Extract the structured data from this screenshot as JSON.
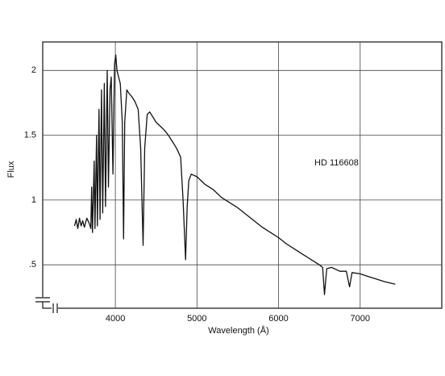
{
  "chart_data": {
    "type": "line",
    "annotation": "HD 116608",
    "x_label": "Wavelength (Å)",
    "y_label": "Flux",
    "xlim": [
      3110,
      8000
    ],
    "ylim": [
      0.165,
      2.22
    ],
    "xticks": [
      4000,
      5000,
      6000,
      7000
    ],
    "yticks": [
      {
        "value": 0.5,
        "label": ".5"
      },
      1,
      1.5,
      2
    ],
    "grid": true,
    "series": [
      {
        "color": "#111111",
        "x": [
          3500,
          3520,
          3540,
          3560,
          3580,
          3600,
          3620,
          3650,
          3680,
          3700,
          3710,
          3720,
          3740,
          3750,
          3770,
          3780,
          3800,
          3812,
          3830,
          3845,
          3865,
          3880,
          3900,
          3915,
          3935,
          3950,
          3970,
          3990,
          4005,
          4020,
          4040,
          4060,
          4085,
          4101,
          4115,
          4140,
          4170,
          4200,
          4240,
          4280,
          4310,
          4340,
          4360,
          4390,
          4420,
          4460,
          4500,
          4550,
          4600,
          4650,
          4700,
          4750,
          4800,
          4830,
          4861,
          4880,
          4900,
          4930,
          5000,
          5100,
          5200,
          5300,
          5400,
          5500,
          5600,
          5700,
          5800,
          5900,
          6000,
          6100,
          6200,
          6300,
          6400,
          6500,
          6540,
          6563,
          6590,
          6650,
          6750,
          6830,
          6870,
          6900,
          7000,
          7100,
          7200,
          7300,
          7430
        ],
        "values": [
          0.8,
          0.85,
          0.78,
          0.86,
          0.8,
          0.84,
          0.79,
          0.86,
          0.82,
          0.78,
          1.1,
          0.75,
          1.3,
          0.78,
          1.5,
          0.8,
          1.7,
          0.85,
          1.85,
          0.9,
          1.9,
          0.95,
          2.0,
          1.1,
          1.85,
          1.95,
          1.2,
          2.05,
          2.12,
          2.0,
          1.95,
          1.9,
          1.6,
          0.7,
          1.6,
          1.85,
          1.82,
          1.8,
          1.76,
          1.7,
          1.4,
          0.65,
          1.4,
          1.66,
          1.68,
          1.64,
          1.6,
          1.57,
          1.54,
          1.5,
          1.45,
          1.4,
          1.33,
          1.0,
          0.54,
          0.95,
          1.15,
          1.2,
          1.18,
          1.12,
          1.08,
          1.02,
          0.98,
          0.94,
          0.89,
          0.84,
          0.79,
          0.75,
          0.71,
          0.66,
          0.62,
          0.58,
          0.54,
          0.5,
          0.48,
          0.27,
          0.47,
          0.48,
          0.45,
          0.45,
          0.33,
          0.44,
          0.43,
          0.41,
          0.39,
          0.37,
          0.35
        ]
      }
    ]
  }
}
